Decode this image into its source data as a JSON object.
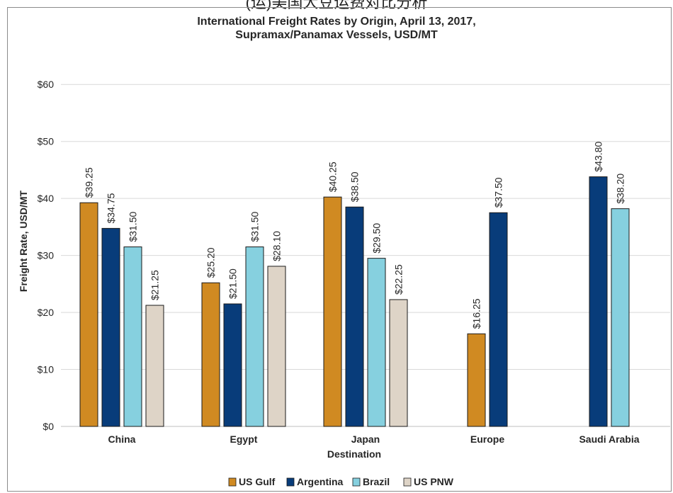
{
  "header_caption": "(运)美国大豆运费对比分析",
  "chart_data": {
    "type": "bar",
    "title": "International Freight Rates by Origin, April 13, 2017,",
    "subtitle": "Supramax/Panamax Vessels, USD/MT",
    "xlabel": "Destination",
    "ylabel": "Freight Rate, USD/MT",
    "ylim": [
      0,
      65
    ],
    "yticks": [
      0,
      10,
      20,
      30,
      40,
      50,
      60
    ],
    "ytick_labels": [
      "$0",
      "$10",
      "$20",
      "$30",
      "$40",
      "$50",
      "$60"
    ],
    "grid": true,
    "legend_position": "bottom",
    "categories": [
      "China",
      "Egypt",
      "Japan",
      "Europe",
      "Saudi Arabia"
    ],
    "series": [
      {
        "name": "US Gulf",
        "color": "#d08a22",
        "values": [
          39.25,
          25.2,
          40.25,
          16.25,
          null
        ],
        "labels": [
          "$39.25",
          "$25.20",
          "$40.25",
          "$16.25",
          ""
        ]
      },
      {
        "name": "Argentina",
        "color": "#083c7a",
        "values": [
          34.75,
          21.5,
          38.5,
          37.5,
          43.8
        ],
        "labels": [
          "$34.75",
          "$21.50",
          "$38.50",
          "$37.50",
          "$43.80"
        ]
      },
      {
        "name": "Brazil",
        "color": "#86d0df",
        "values": [
          31.5,
          31.5,
          29.5,
          null,
          38.2
        ],
        "labels": [
          "$31.50",
          "$31.50",
          "$29.50",
          "",
          "$38.20"
        ]
      },
      {
        "name": "US PNW",
        "color": "#ded4c7",
        "values": [
          21.25,
          28.1,
          22.25,
          null,
          null
        ],
        "labels": [
          "$21.25",
          "$28.10",
          "$22.25",
          "",
          ""
        ]
      }
    ]
  }
}
